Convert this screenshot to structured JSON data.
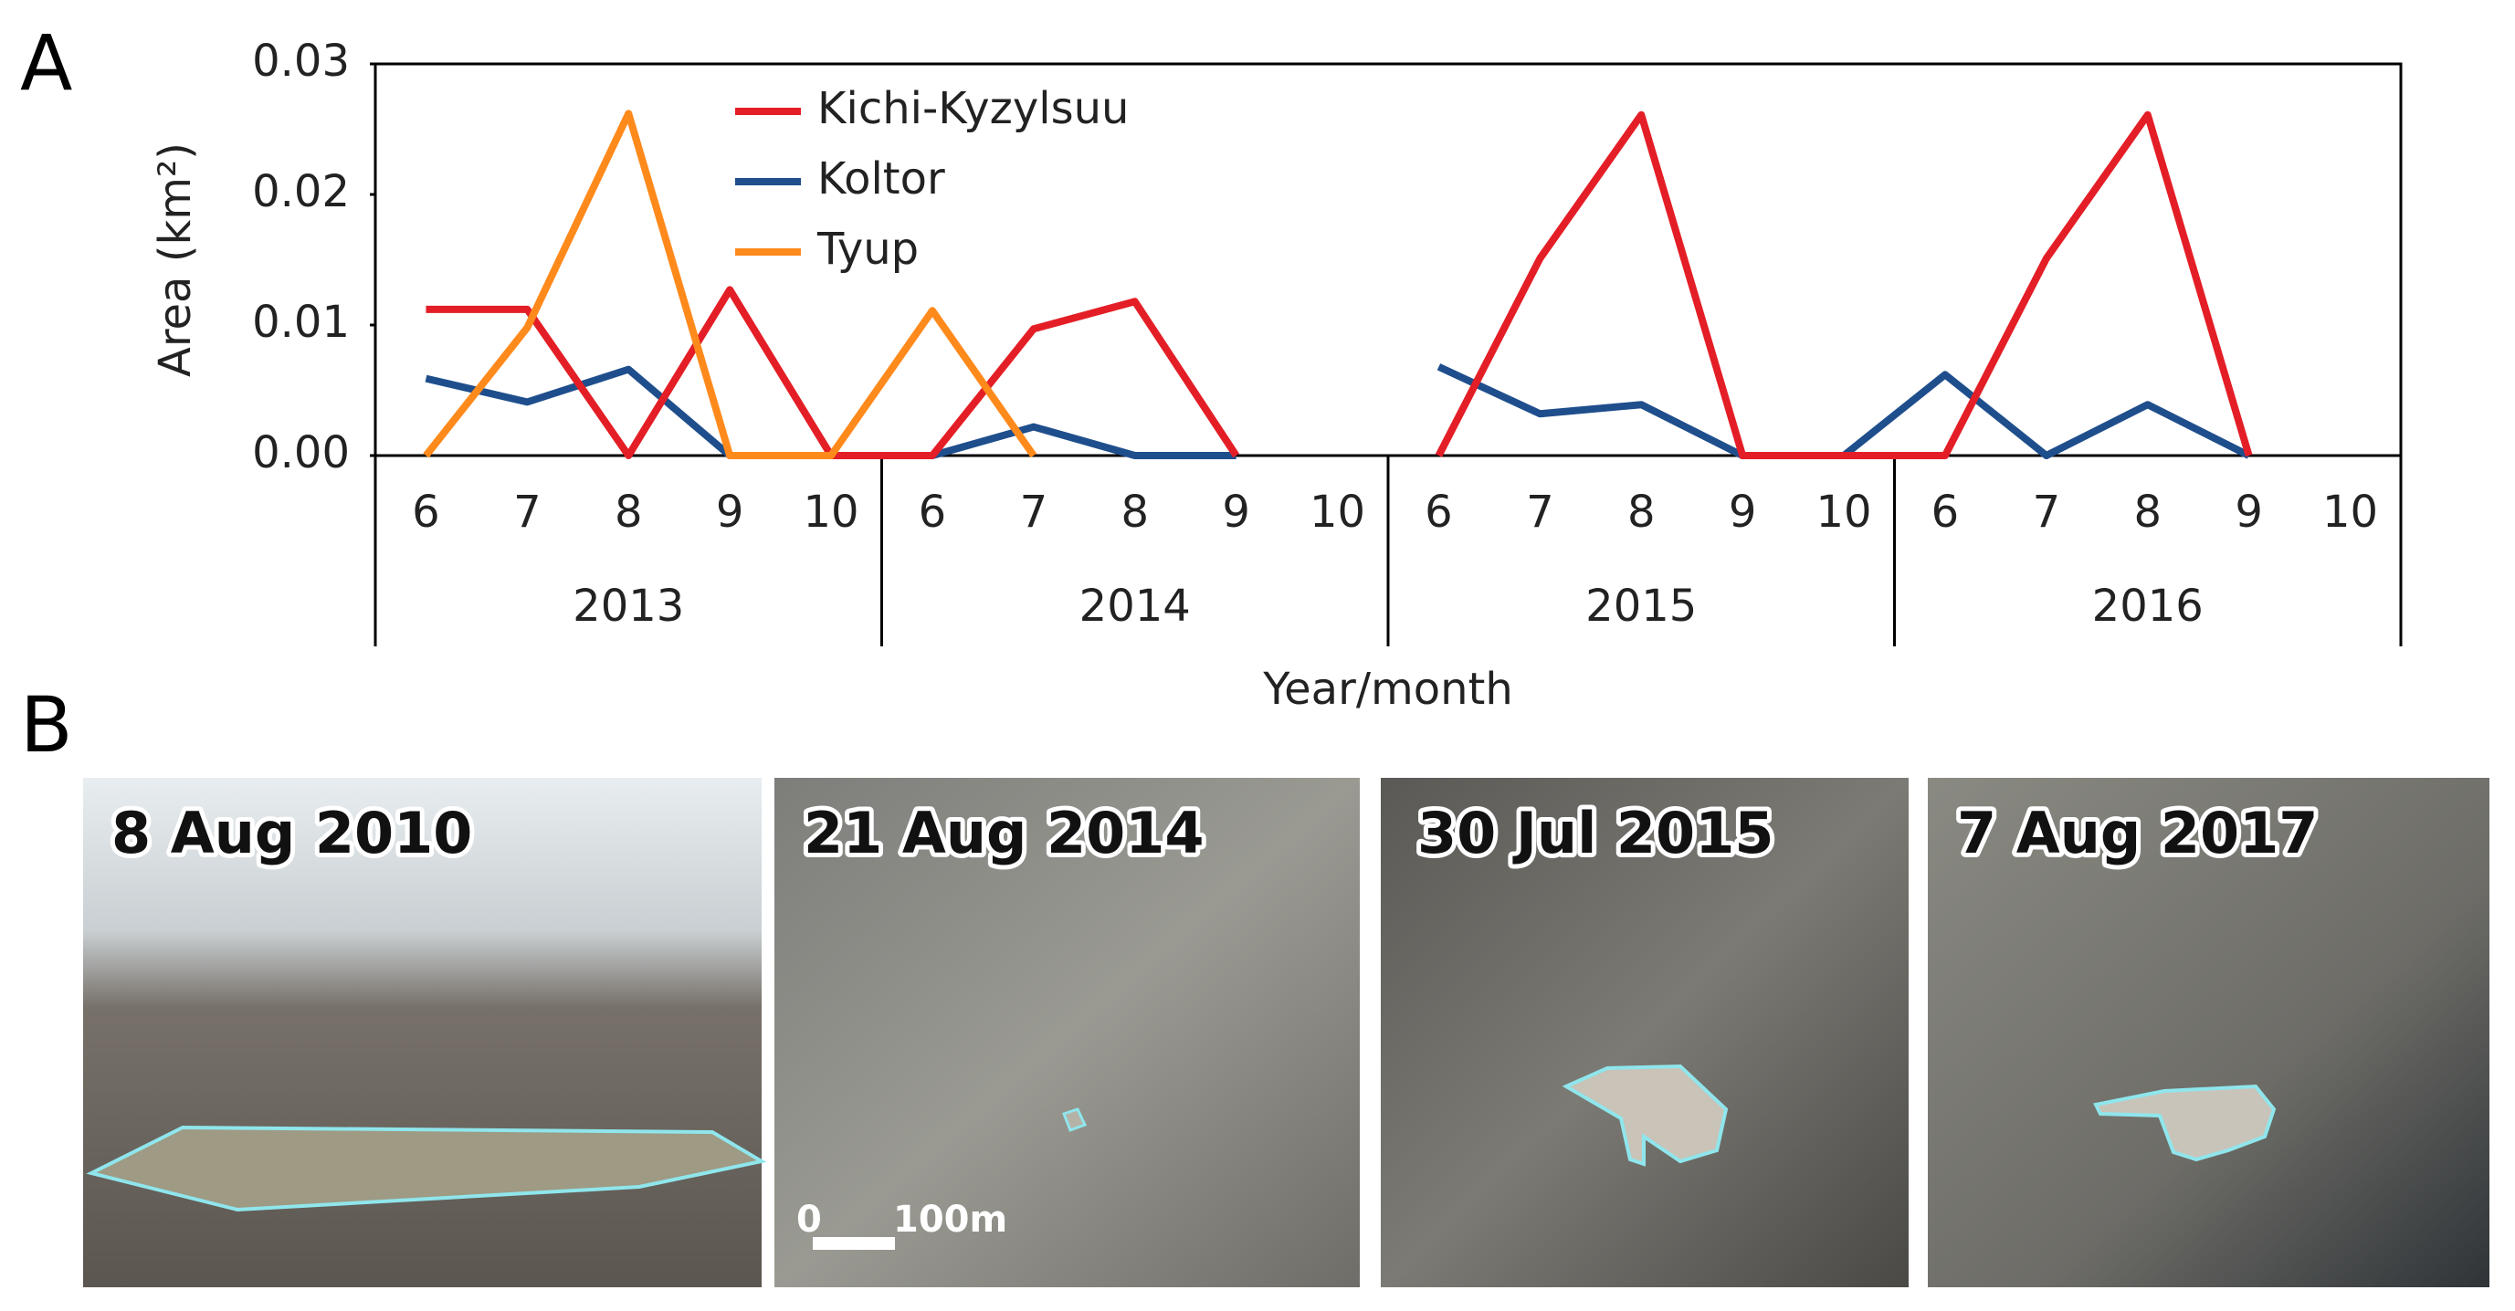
{
  "panels": [
    "A",
    "B"
  ],
  "chart_data": {
    "type": "line",
    "ylabel": "Area (km²)",
    "xlabel": "Year/month",
    "categories": [
      "6",
      "7",
      "8",
      "9",
      "10",
      "6",
      "7",
      "8",
      "9",
      "10",
      "6",
      "7",
      "8",
      "9",
      "10",
      "6",
      "7",
      "8",
      "9",
      "10"
    ],
    "groups": [
      "2013",
      "2014",
      "2015",
      "2016"
    ],
    "ylim": [
      0,
      0.03
    ],
    "yticks": [
      {
        "value": 0,
        "label": "0.00"
      },
      0.01,
      0.02,
      0.03
    ],
    "legend": "upper-left",
    "series": [
      {
        "name": "Kichi-Kyzylsuu",
        "color": "#e41e26",
        "values": [
          0.0112,
          0.0112,
          0,
          0.0127,
          0,
          0,
          0.0097,
          0.0118,
          0,
          null,
          0,
          0.0151,
          0.0261,
          0,
          0,
          0,
          0.0151,
          0.0261,
          0,
          null
        ]
      },
      {
        "name": "Koltor",
        "color": "#1f4e8c",
        "values": [
          0.0059,
          0.0041,
          0.0066,
          0,
          0,
          0,
          0.0022,
          0,
          0,
          null,
          0.0068,
          0.0032,
          0.0039,
          0,
          0,
          0.0062,
          0,
          0.0039,
          0,
          null
        ]
      },
      {
        "name": "Tyup",
        "color": "#ff8a1c",
        "values": [
          0,
          0.0098,
          0.0262,
          0,
          0,
          0.0111,
          0,
          null,
          null,
          null,
          null,
          null,
          null,
          null,
          null,
          null,
          null,
          null,
          null,
          null
        ]
      }
    ]
  },
  "photos": [
    {
      "date": "8 Aug 2010"
    },
    {
      "date": "21 Aug 2014"
    },
    {
      "date": "30 Jul 2015"
    },
    {
      "date": "7 Aug 2017"
    }
  ],
  "scale_bar": {
    "start": "0",
    "end": "100m"
  }
}
